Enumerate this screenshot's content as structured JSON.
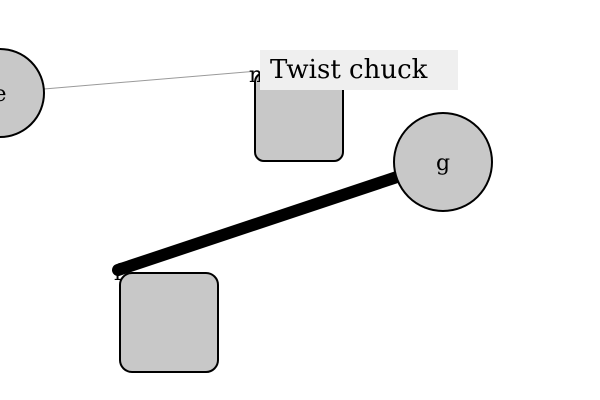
{
  "diagram": {
    "nodes": [
      {
        "id": "e",
        "label": "e",
        "shape": "circle"
      },
      {
        "id": "n",
        "label": "n",
        "shape": "rounded-square"
      },
      {
        "id": "g",
        "label": "g",
        "shape": "circle"
      },
      {
        "id": "f",
        "label": "f",
        "shape": "rounded-square"
      }
    ],
    "edges": [
      {
        "from": "e",
        "to": "n",
        "weight": "thin"
      },
      {
        "from": "g",
        "to": "f",
        "weight": "thick"
      }
    ],
    "tooltip": {
      "text": "Twist chuck"
    },
    "colors": {
      "node_fill": "#c8c8c8",
      "node_stroke": "#000000",
      "thin_edge": "#9a9a9a",
      "thick_edge": "#000000",
      "tooltip_bg": "#efefef",
      "background": "#ffffff"
    }
  }
}
